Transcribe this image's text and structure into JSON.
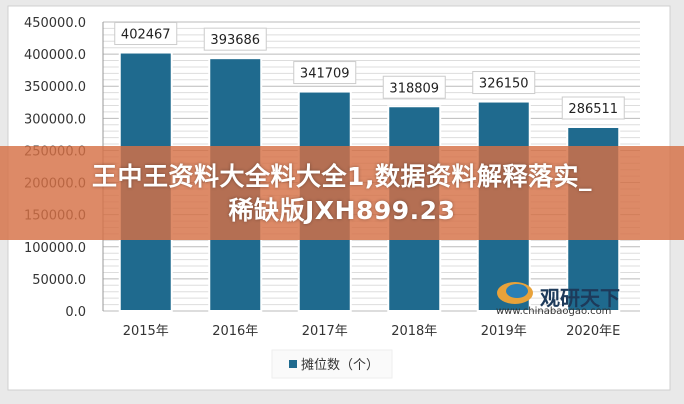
{
  "chart_data": {
    "type": "bar",
    "categories": [
      "2015年",
      "2016年",
      "2017年",
      "2018年",
      "2019年",
      "2020年E"
    ],
    "series": [
      {
        "name": "摊位数（个）",
        "values": [
          402467,
          393686,
          341709,
          318809,
          326150,
          286511
        ],
        "color": "#1f6a8e"
      }
    ],
    "ylim": [
      0,
      450000
    ],
    "yticks": [
      "0.0",
      "50000.0",
      "100000.0",
      "150000.0",
      "200000.0",
      "250000.0",
      "300000.0",
      "350000.0",
      "400000.0",
      "450000.0"
    ],
    "data_labels": [
      "402467",
      "393686",
      "341709",
      "318809",
      "326150",
      "286511"
    ],
    "grid": true,
    "legend": "bottom-left"
  },
  "overlay": {
    "line1": "王中王资料大全料大全1,数据资料解释落实_",
    "line2": "稀缺版JXH899.23"
  },
  "watermark": {
    "name": "观研天下",
    "url": "www.chinabaogao.com"
  }
}
